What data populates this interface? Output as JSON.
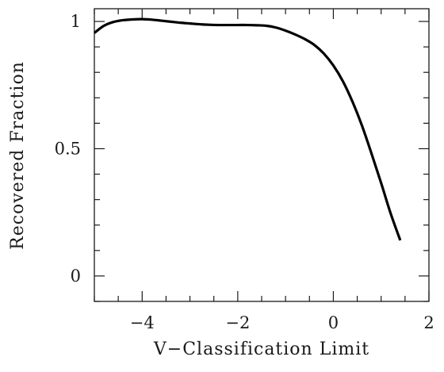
{
  "chart_data": {
    "type": "line",
    "title": "",
    "xlabel": "V−Classification Limit",
    "ylabel": "Recovered Fraction",
    "xlim": [
      -5,
      2
    ],
    "ylim": [
      -0.1,
      1.05
    ],
    "x_ticks": [
      -4,
      -2,
      0,
      2
    ],
    "x_tick_labels": [
      "−4",
      "−2",
      "0",
      "2"
    ],
    "y_ticks": [
      0,
      0.5,
      1
    ],
    "y_tick_labels": [
      "0",
      "0.5",
      "1"
    ],
    "x_minor_step": 0.5,
    "y_minor_step": 0.1,
    "grid": false,
    "legend": "none",
    "series": [
      {
        "x": [
          -5.0,
          -4.8,
          -4.6,
          -4.4,
          -4.2,
          -4.0,
          -3.8,
          -3.6,
          -3.4,
          -3.2,
          -3.0,
          -2.8,
          -2.6,
          -2.4,
          -2.2,
          -2.0,
          -1.8,
          -1.6,
          -1.4,
          -1.2,
          -1.0,
          -0.8,
          -0.6,
          -0.4,
          -0.2,
          0.0,
          0.2,
          0.4,
          0.6,
          0.8,
          1.0,
          1.2,
          1.4
        ],
        "y": [
          0.955,
          0.983,
          0.998,
          1.005,
          1.008,
          1.009,
          1.007,
          1.003,
          0.999,
          0.995,
          0.992,
          0.989,
          0.987,
          0.986,
          0.986,
          0.986,
          0.986,
          0.985,
          0.983,
          0.976,
          0.964,
          0.949,
          0.931,
          0.908,
          0.874,
          0.827,
          0.765,
          0.685,
          0.59,
          0.48,
          0.365,
          0.245,
          0.14
        ]
      }
    ]
  }
}
